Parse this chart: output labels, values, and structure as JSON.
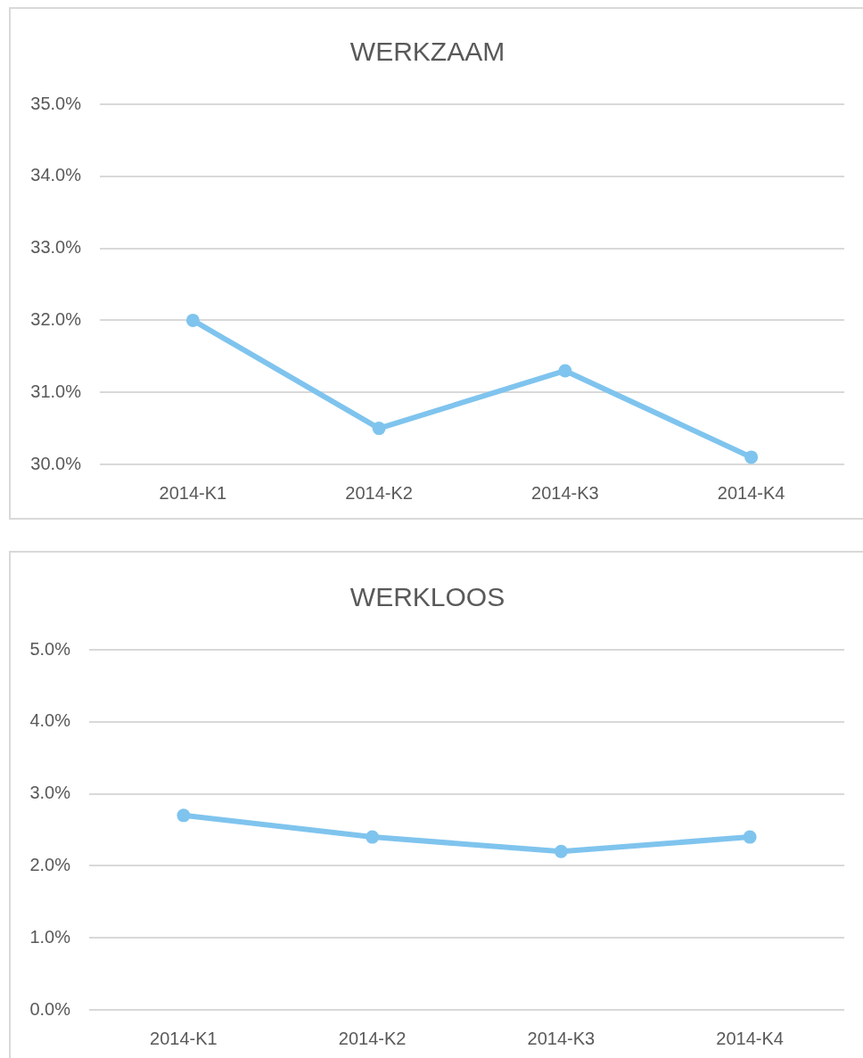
{
  "chart_data": [
    {
      "type": "line",
      "title": "WERKZAAM",
      "categories": [
        "2014-K1",
        "2014-K2",
        "2014-K3",
        "2014-K4"
      ],
      "series": [
        {
          "color": "#7fc4ee",
          "values": [
            32.0,
            30.5,
            31.3,
            30.1
          ]
        }
      ],
      "ylim": [
        30,
        35
      ],
      "yticks": [
        {
          "value": 30,
          "label": "30.0%"
        },
        {
          "value": 31,
          "label": "31.0%"
        },
        {
          "value": 32,
          "label": "32.0%"
        },
        {
          "value": 33,
          "label": "33.0%"
        },
        {
          "value": 34,
          "label": "34.0%"
        },
        {
          "value": 35,
          "label": "35.0%"
        }
      ],
      "grid": "y",
      "marker": "circle",
      "line_style": "solid"
    },
    {
      "type": "line",
      "title": "WERKLOOS",
      "categories": [
        "2014-K1",
        "2014-K2",
        "2014-K3",
        "2014-K4"
      ],
      "series": [
        {
          "color": "#7fc4ee",
          "values": [
            2.7,
            2.4,
            2.2,
            2.4
          ]
        }
      ],
      "ylim": [
        0,
        5
      ],
      "yticks": [
        {
          "value": 0,
          "label": "0.0%"
        },
        {
          "value": 1,
          "label": "1.0%"
        },
        {
          "value": 2,
          "label": "2.0%"
        },
        {
          "value": 3,
          "label": "3.0%"
        },
        {
          "value": 4,
          "label": "4.0%"
        },
        {
          "value": 5,
          "label": "5.0%"
        }
      ],
      "grid": "y",
      "marker": "circle",
      "line_style": "solid"
    }
  ]
}
